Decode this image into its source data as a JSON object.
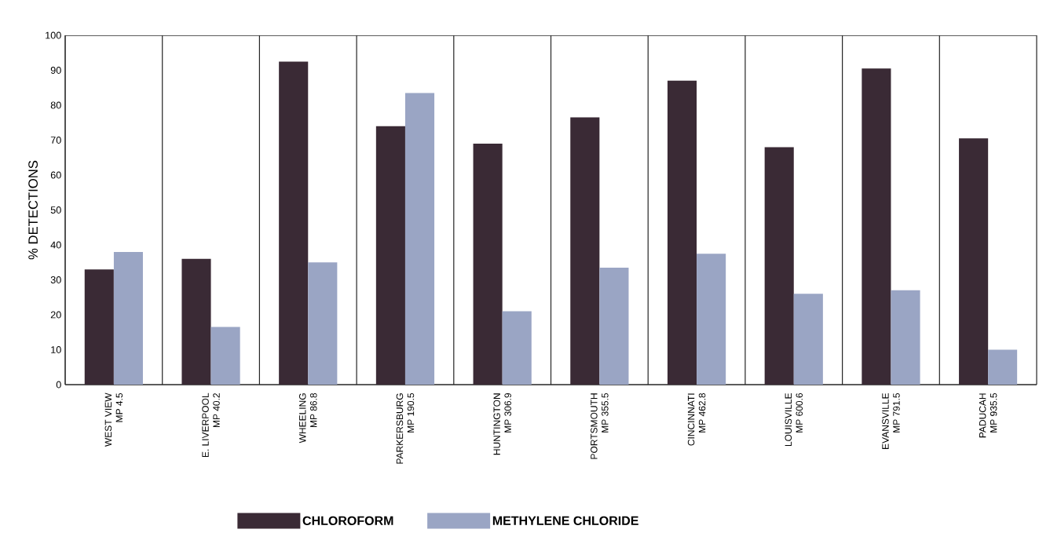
{
  "chart_data": {
    "type": "bar",
    "ylabel": "% DETECTIONS",
    "categories": [
      "WEST VIEW MP 4.5",
      "E. LIVERPOOL MP 40.2",
      "WHEELING MP 86.8",
      "PARKERSBURG MP 190.5",
      "HUNTINGTON MP 306.9",
      "PORTSMOUTH MP 355.5",
      "CINCINNATI MP 462.8",
      "LOUISVILLE MP 600.6",
      "EVANSVILLE MP 791.5",
      "PADUCAH MP 935.5"
    ],
    "series": [
      {
        "name": "CHLOROFORM",
        "color": "#3a2a35",
        "values": [
          33,
          36,
          92.5,
          74,
          69,
          76.5,
          87,
          68,
          90.5,
          70.5
        ]
      },
      {
        "name": "METHYLENE CHLORIDE",
        "color": "#9aa5c4",
        "values": [
          38,
          16.5,
          35,
          83.5,
          21,
          33.5,
          37.5,
          26,
          27,
          10
        ]
      }
    ],
    "ylim": [
      0,
      100
    ],
    "yticks": [
      0,
      10,
      20,
      30,
      40,
      50,
      60,
      70,
      80,
      90,
      100
    ],
    "grid": "x",
    "legend": "bottom"
  }
}
